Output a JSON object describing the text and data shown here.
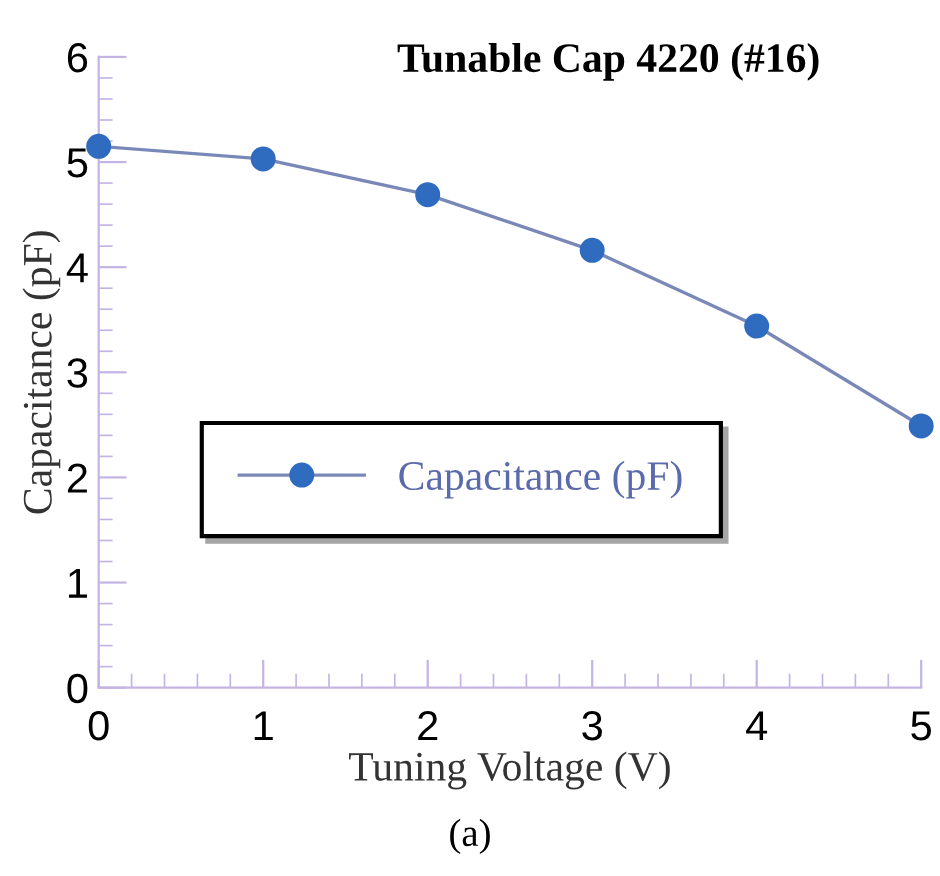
{
  "chart_data": {
    "type": "line",
    "title": "Tunable Cap 4220 (#16)",
    "xlabel": "Tuning Voltage (V)",
    "ylabel": "Capacitance (pF)",
    "x": [
      0,
      1,
      2,
      3,
      4,
      5
    ],
    "series": [
      {
        "name": "Capacitance (pF)",
        "color": "#2f6bbf",
        "values": [
          5.15,
          5.03,
          4.69,
          4.16,
          3.44,
          2.49
        ]
      }
    ],
    "xlim": [
      0,
      5
    ],
    "ylim": [
      0,
      6
    ],
    "xticks": [
      0,
      1,
      2,
      3,
      4,
      5
    ],
    "yticks": [
      0,
      1,
      2,
      3,
      4,
      5,
      6
    ],
    "grid": false,
    "legend": "center left",
    "marker": "circle",
    "line_style": "solid",
    "annotations": [
      "(a)"
    ]
  }
}
